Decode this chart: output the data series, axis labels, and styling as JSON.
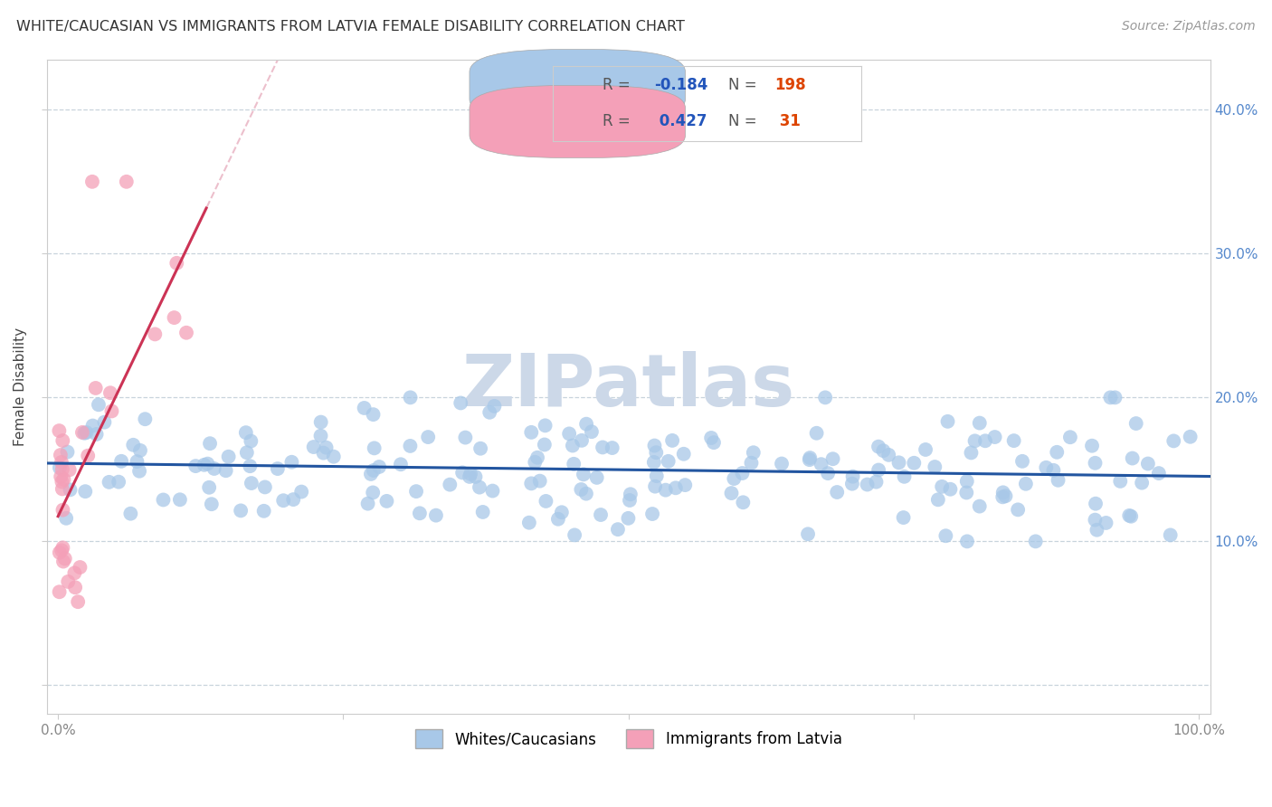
{
  "title": "WHITE/CAUCASIAN VS IMMIGRANTS FROM LATVIA FEMALE DISABILITY CORRELATION CHART",
  "source": "Source: ZipAtlas.com",
  "ylabel": "Female Disability",
  "xlim": [
    -0.01,
    1.01
  ],
  "ylim": [
    -0.02,
    0.435
  ],
  "yticks": [
    0.0,
    0.1,
    0.2,
    0.3,
    0.4
  ],
  "ytick_labels_right": [
    "",
    "10.0%",
    "20.0%",
    "30.0%",
    "40.0%"
  ],
  "xticks": [
    0.0,
    0.25,
    0.5,
    0.75,
    1.0
  ],
  "xtick_labels": [
    "0.0%",
    "",
    "",
    "",
    "100.0%"
  ],
  "legend1_label": "Whites/Caucasians",
  "legend2_label": "Immigrants from Latvia",
  "blue_R": "-0.184",
  "blue_N": "198",
  "pink_R": "0.427",
  "pink_N": "31",
  "blue_color": "#a8c8e8",
  "pink_color": "#f4a0b8",
  "blue_line_color": "#2255a0",
  "pink_line_color": "#cc3355",
  "watermark_text": "ZIPatlas",
  "watermark_color": "#ccd8e8",
  "grid_color": "#c8d4dc",
  "background_color": "#ffffff",
  "title_fontsize": 11.5,
  "source_fontsize": 10,
  "ylabel_fontsize": 11,
  "tick_color": "#888888",
  "right_tick_color": "#5588cc",
  "legend_R_color": "#2255bb",
  "legend_N_color": "#dd4400"
}
